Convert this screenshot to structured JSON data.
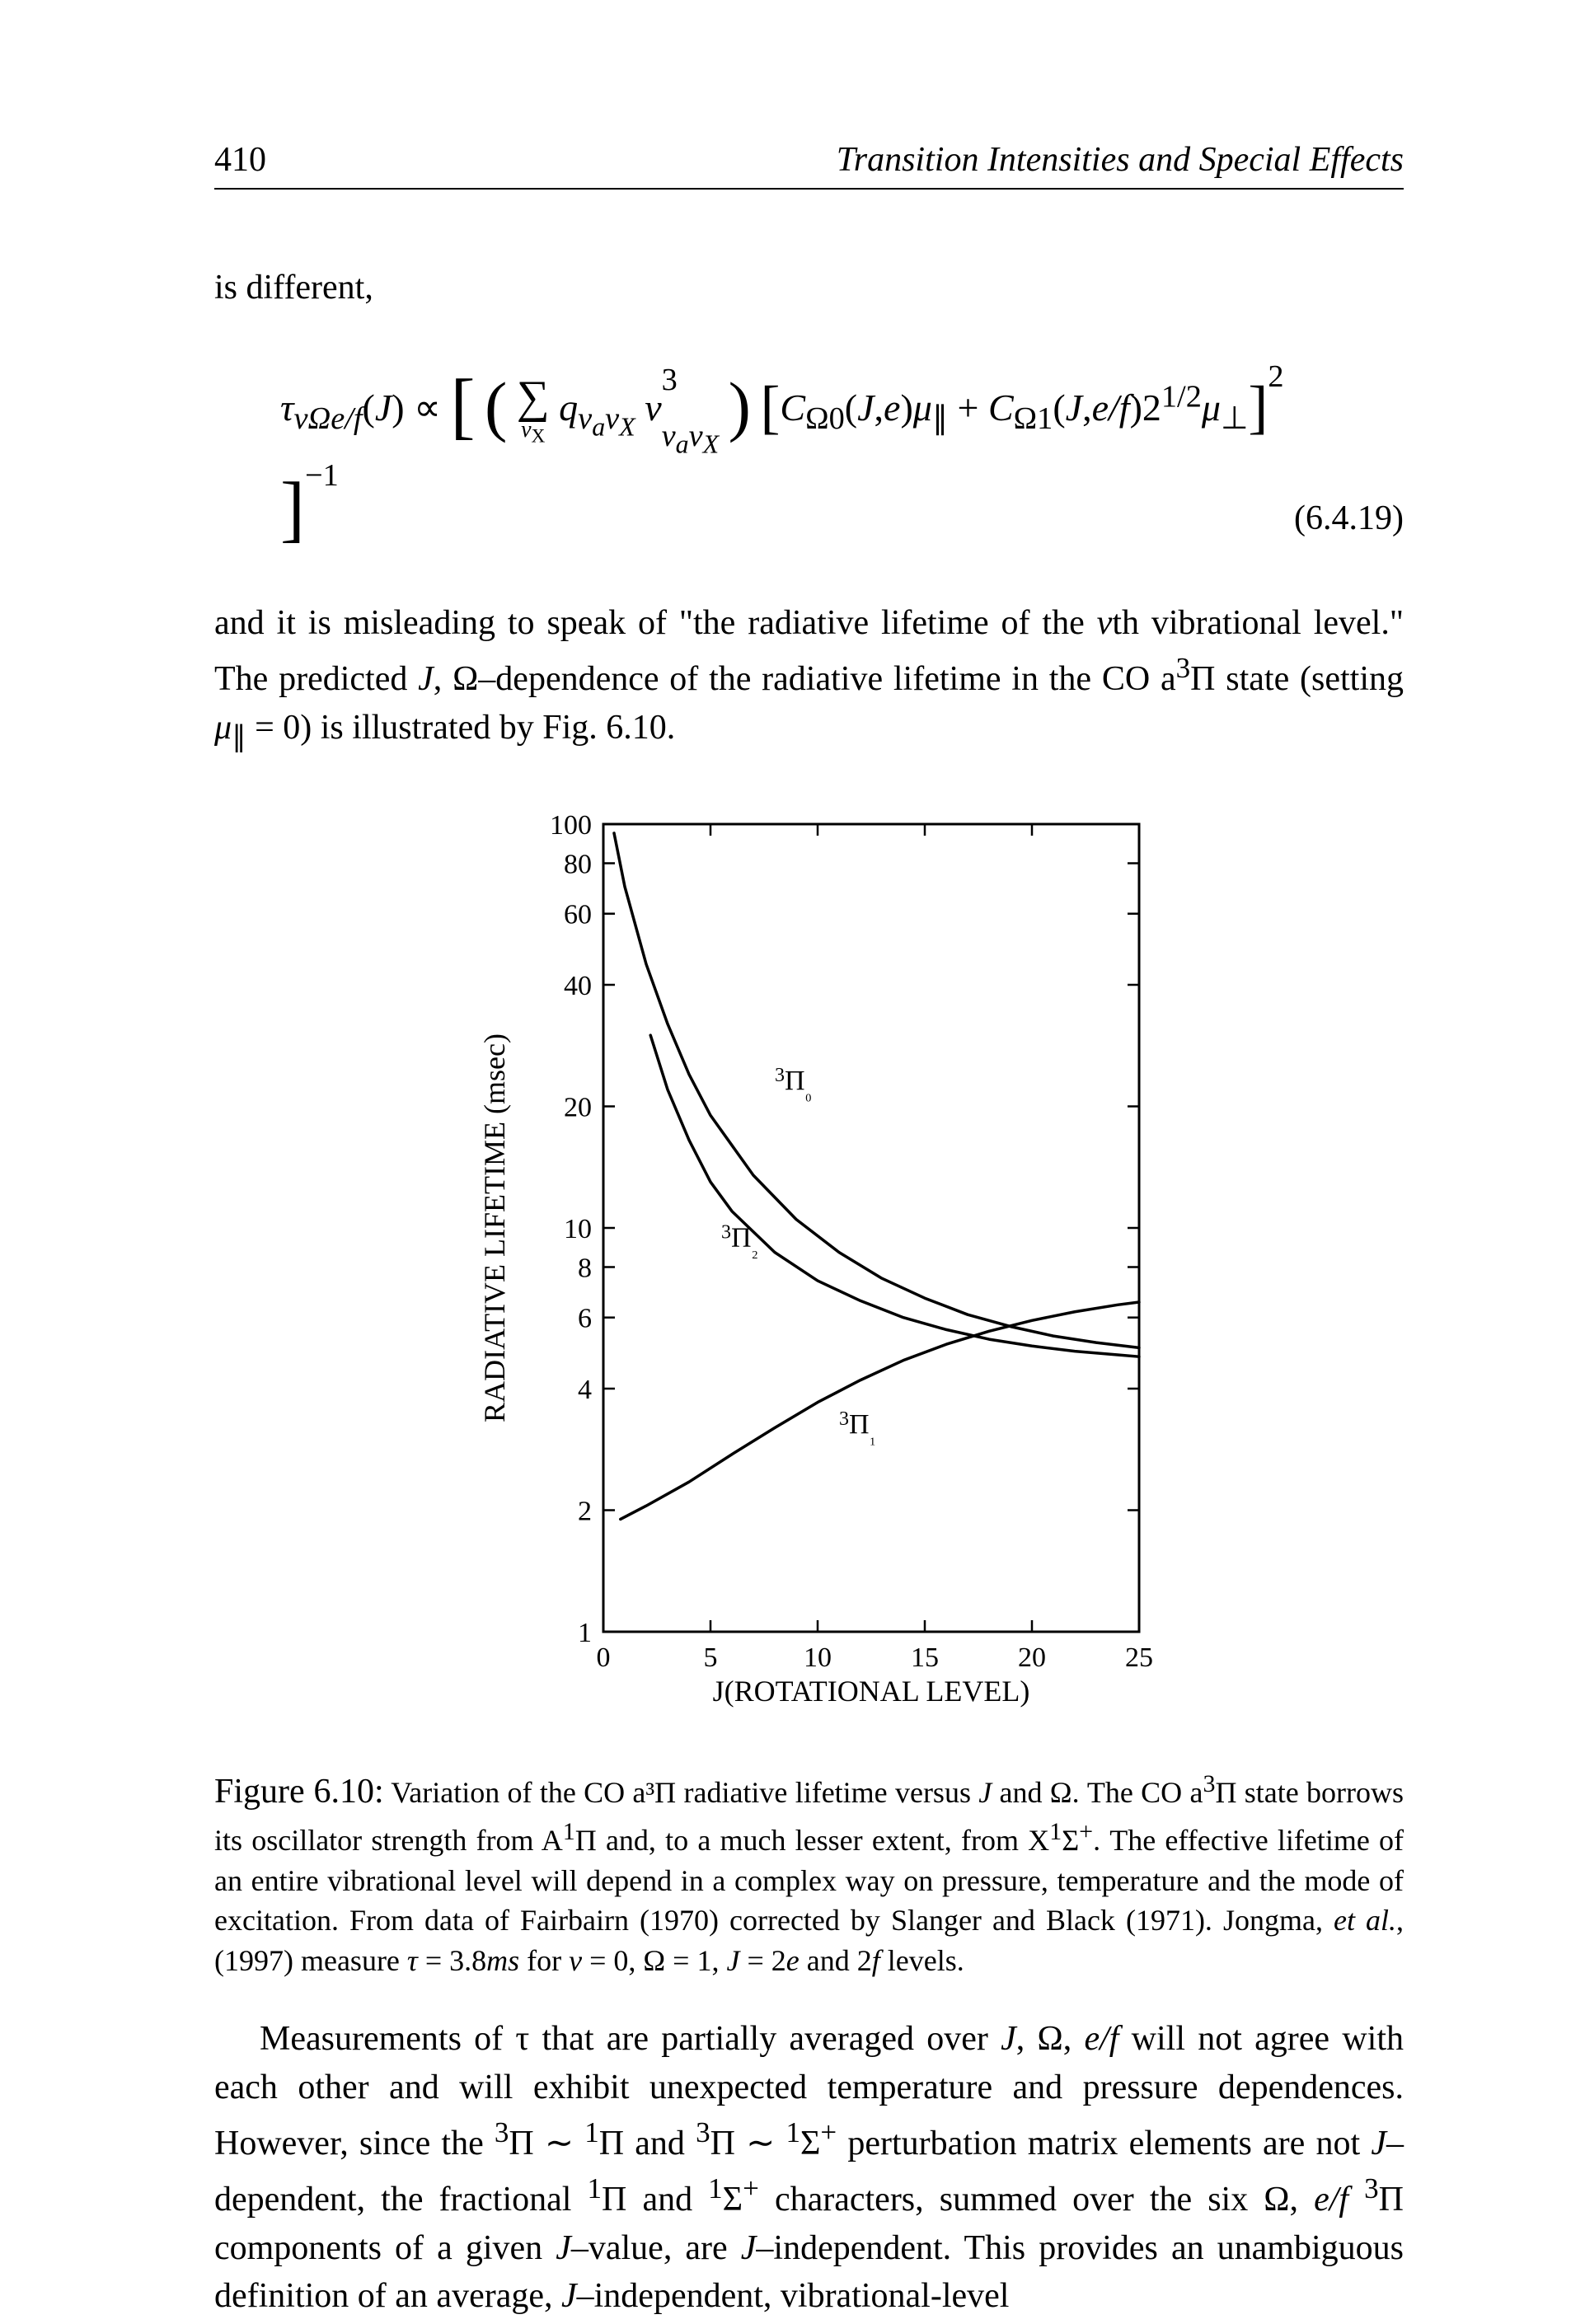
{
  "header": {
    "page_number": "410",
    "running_title": "Transition Intensities and Special Effects"
  },
  "para1": "is different,",
  "equation": {
    "text": "τ_{vΩe/f}(J) ∝ [ (Σ_{vX} q_{v_a v_X} ν³_{v_a v_X}) [C_{Ω0}(J,e)μ_∥ + C_{Ω1}(J,e/f)2^{1/2}μ_⊥]² ]⁻¹",
    "number": "(6.4.19)"
  },
  "para2_pre": "and it is misleading to speak of \"the radiative lifetime of the ",
  "para2_ital_v": "v",
  "para2_mid1": "th vibrational level.\" The predicted ",
  "para2_ital_J": "J",
  "para2_mid2": ", Ω–dependence of the radiative lifetime in the CO a³Π state (setting μ_∥ = 0) is illustrated by Fig. 6.10.",
  "figure": {
    "type": "line",
    "xlabel": "J(ROTATIONAL LEVEL)",
    "ylabel": "RADIATIVE LIFETIME (msec)",
    "xlim": [
      0,
      25
    ],
    "ylim": [
      1,
      100
    ],
    "yscale": "log",
    "x_ticks": [
      0,
      5,
      10,
      15,
      20,
      25
    ],
    "y_ticks": [
      1,
      2,
      4,
      6,
      8,
      10,
      20,
      40,
      60,
      80,
      100
    ],
    "axis_color": "#000000",
    "background_color": "#ffffff",
    "line_color": "#000000",
    "line_width": 3.5,
    "axis_width": 3,
    "tick_fontsize": 34,
    "label_fontsize": 36,
    "annotation_fontsize": 34,
    "series": {
      "Pi0": {
        "label": "³Π₀",
        "label_pos": {
          "x": 8,
          "y": 22
        },
        "points": [
          {
            "x": 0.5,
            "y": 95
          },
          {
            "x": 1,
            "y": 70
          },
          {
            "x": 2,
            "y": 45
          },
          {
            "x": 3,
            "y": 32
          },
          {
            "x": 4,
            "y": 24
          },
          {
            "x": 5,
            "y": 19
          },
          {
            "x": 7,
            "y": 13.5
          },
          {
            "x": 9,
            "y": 10.5
          },
          {
            "x": 11,
            "y": 8.7
          },
          {
            "x": 13,
            "y": 7.5
          },
          {
            "x": 15,
            "y": 6.7
          },
          {
            "x": 17,
            "y": 6.1
          },
          {
            "x": 19,
            "y": 5.7
          },
          {
            "x": 21,
            "y": 5.4
          },
          {
            "x": 23,
            "y": 5.2
          },
          {
            "x": 25,
            "y": 5.05
          }
        ]
      },
      "Pi2": {
        "label": "³Π₂",
        "label_pos": {
          "x": 5.5,
          "y": 9
        },
        "points": [
          {
            "x": 2.2,
            "y": 30
          },
          {
            "x": 3,
            "y": 22
          },
          {
            "x": 4,
            "y": 16.5
          },
          {
            "x": 5,
            "y": 13
          },
          {
            "x": 6,
            "y": 11
          },
          {
            "x": 8,
            "y": 8.7
          },
          {
            "x": 10,
            "y": 7.4
          },
          {
            "x": 12,
            "y": 6.6
          },
          {
            "x": 14,
            "y": 6.0
          },
          {
            "x": 16,
            "y": 5.6
          },
          {
            "x": 18,
            "y": 5.3
          },
          {
            "x": 20,
            "y": 5.1
          },
          {
            "x": 22,
            "y": 4.95
          },
          {
            "x": 24,
            "y": 4.85
          },
          {
            "x": 25,
            "y": 4.8
          }
        ]
      },
      "Pi1": {
        "label": "³Π₁",
        "label_pos": {
          "x": 11,
          "y": 3.1
        },
        "points": [
          {
            "x": 0.8,
            "y": 1.9
          },
          {
            "x": 2,
            "y": 2.05
          },
          {
            "x": 4,
            "y": 2.35
          },
          {
            "x": 6,
            "y": 2.75
          },
          {
            "x": 8,
            "y": 3.2
          },
          {
            "x": 10,
            "y": 3.7
          },
          {
            "x": 12,
            "y": 4.2
          },
          {
            "x": 14,
            "y": 4.7
          },
          {
            "x": 16,
            "y": 5.15
          },
          {
            "x": 18,
            "y": 5.55
          },
          {
            "x": 20,
            "y": 5.9
          },
          {
            "x": 22,
            "y": 6.2
          },
          {
            "x": 24,
            "y": 6.45
          },
          {
            "x": 25,
            "y": 6.55
          }
        ]
      }
    }
  },
  "caption": {
    "label": "Figure 6.10:",
    "text_a": " Variation of the CO a³Π radiative lifetime versus ",
    "text_J": "J",
    "text_b": " and Ω. The CO a³Π state borrows its oscillator strength from A¹Π and, to a much lesser extent, from X¹Σ⁺. The effective lifetime of an entire vibrational level will depend in a complex way on pressure, temperature and the mode of excitation. From data of Fairbairn (1970) corrected by Slanger and Black (1971). Jongma, ",
    "text_etal": "et al.",
    "text_c": ", (1997) measure τ = 3.8",
    "text_ms": "ms",
    "text_d": " for ",
    "text_v": "v",
    "text_e": " = 0, Ω = 1, ",
    "text_J2": "J",
    "text_f": " = 2",
    "text_eital": "e",
    "text_g": " and 2",
    "text_fital": "f",
    "text_h": " levels."
  },
  "para3_a": "Measurements of τ that are partially averaged over ",
  "para3_J": "J",
  "para3_b": ", Ω, ",
  "para3_ef": "e/f",
  "para3_c": " will not agree with each other and will exhibit unexpected temperature and pressure dependences. However, since the ³Π ∼ ¹Π and ³Π ∼ ¹Σ⁺ perturbation matrix elements are not ",
  "para3_J2": "J",
  "para3_d": "-dependent, the fractional ¹Π and ¹Σ⁺ characters, summed over the six Ω, ",
  "para3_ef2": "e/f",
  "para3_e": " ³Π components of a given ",
  "para3_J3": "J",
  "para3_f": "-value, are ",
  "para3_J4": "J",
  "para3_g": "-independent. This provides an unambiguous definition of an average, ",
  "para3_J5": "J",
  "para3_h": "-independent, vibrational-level"
}
